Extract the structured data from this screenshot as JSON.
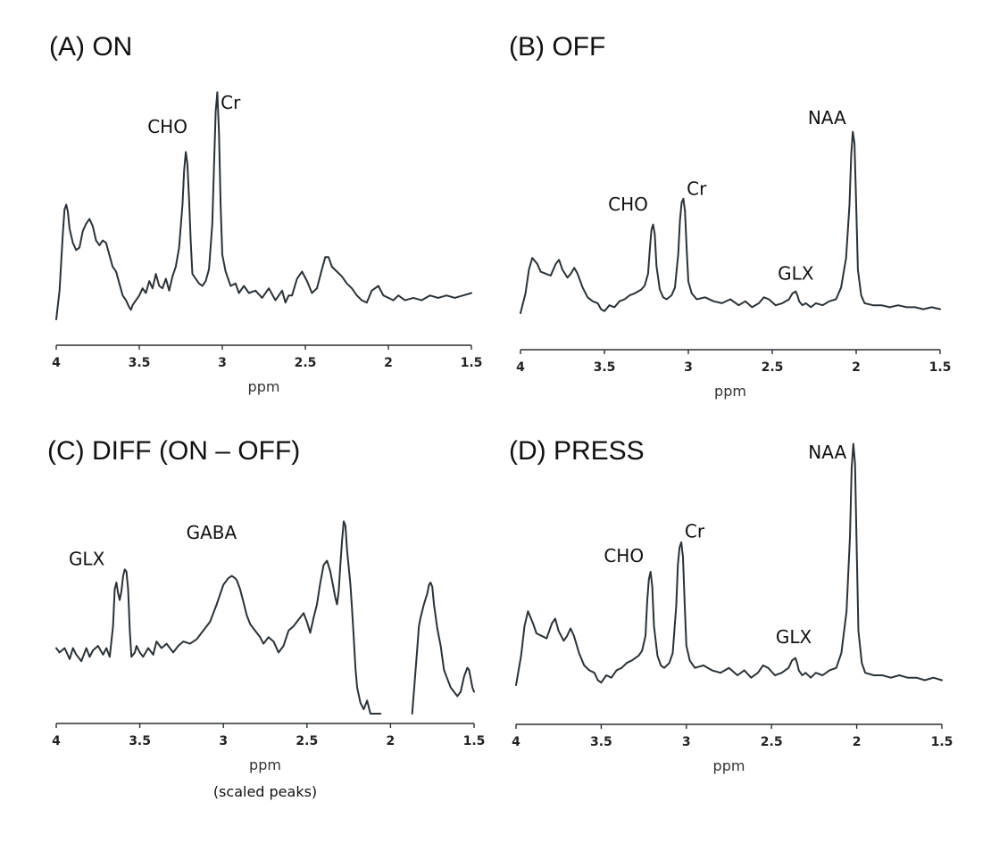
{
  "colors": {
    "spectrum": "#2b3237",
    "axis": "#2a2f33"
  },
  "chart_data": [
    {
      "type": "line",
      "title": "(A) ON",
      "xlabel": "ppm",
      "ylabel": "",
      "xlim": [
        4,
        1.5
      ],
      "ylim": [
        0,
        1
      ],
      "xticks": [
        4,
        3.5,
        3,
        2.5,
        2,
        1.5
      ],
      "tick_labels": [
        "4",
        "3.5",
        "3",
        "2.5",
        "2",
        "1.5"
      ],
      "note": "",
      "series": [
        {
          "name": "ON spectrum",
          "x": [
            4.0,
            3.98,
            3.96,
            3.95,
            3.94,
            3.93,
            3.92,
            3.9,
            3.88,
            3.86,
            3.84,
            3.82,
            3.8,
            3.78,
            3.76,
            3.74,
            3.72,
            3.7,
            3.68,
            3.66,
            3.64,
            3.62,
            3.6,
            3.58,
            3.56,
            3.55,
            3.54,
            3.52,
            3.5,
            3.48,
            3.46,
            3.44,
            3.42,
            3.4,
            3.38,
            3.36,
            3.34,
            3.32,
            3.3,
            3.28,
            3.26,
            3.24,
            3.23,
            3.22,
            3.21,
            3.2,
            3.19,
            3.18,
            3.16,
            3.14,
            3.12,
            3.1,
            3.08,
            3.06,
            3.05,
            3.04,
            3.03,
            3.02,
            3.01,
            3.0,
            2.98,
            2.95,
            2.92,
            2.9,
            2.87,
            2.84,
            2.8,
            2.76,
            2.72,
            2.68,
            2.64,
            2.62,
            2.6,
            2.58,
            2.55,
            2.52,
            2.49,
            2.46,
            2.43,
            2.4,
            2.38,
            2.36,
            2.34,
            2.31,
            2.28,
            2.25,
            2.22,
            2.19,
            2.16,
            2.13,
            2.1,
            2.06,
            2.03,
            2.0,
            1.97,
            1.94,
            1.9,
            1.85,
            1.8,
            1.75,
            1.7,
            1.65,
            1.6,
            1.55,
            1.5
          ],
          "y": [
            0.0,
            0.12,
            0.36,
            0.46,
            0.48,
            0.45,
            0.38,
            0.32,
            0.29,
            0.3,
            0.37,
            0.4,
            0.42,
            0.39,
            0.33,
            0.31,
            0.33,
            0.32,
            0.27,
            0.22,
            0.2,
            0.15,
            0.1,
            0.08,
            0.05,
            0.04,
            0.06,
            0.08,
            0.1,
            0.13,
            0.11,
            0.16,
            0.13,
            0.19,
            0.14,
            0.13,
            0.17,
            0.12,
            0.18,
            0.22,
            0.3,
            0.48,
            0.62,
            0.7,
            0.65,
            0.5,
            0.32,
            0.19,
            0.17,
            0.15,
            0.14,
            0.16,
            0.21,
            0.4,
            0.64,
            0.87,
            0.95,
            0.78,
            0.48,
            0.27,
            0.2,
            0.14,
            0.15,
            0.11,
            0.14,
            0.11,
            0.12,
            0.09,
            0.13,
            0.08,
            0.12,
            0.07,
            0.1,
            0.1,
            0.17,
            0.2,
            0.16,
            0.11,
            0.13,
            0.21,
            0.26,
            0.26,
            0.22,
            0.2,
            0.18,
            0.15,
            0.13,
            0.1,
            0.08,
            0.07,
            0.12,
            0.14,
            0.1,
            0.09,
            0.08,
            0.1,
            0.08,
            0.09,
            0.08,
            0.1,
            0.09,
            0.1,
            0.09,
            0.1,
            0.11
          ]
        }
      ],
      "peak_labels": [
        {
          "text": "CHO",
          "ppm": 3.21,
          "y": 0.78,
          "anchor": "end"
        },
        {
          "text": "Cr",
          "ppm": 3.01,
          "y": 0.88,
          "anchor": "start"
        }
      ]
    },
    {
      "type": "line",
      "title": "(B) OFF",
      "xlabel": "ppm",
      "ylabel": "",
      "xlim": [
        4,
        1.5
      ],
      "ylim": [
        0,
        1
      ],
      "xticks": [
        4,
        3.5,
        3,
        2.5,
        2,
        1.5
      ],
      "tick_labels": [
        "4",
        "3.5",
        "3",
        "2.5",
        "2",
        "1.5"
      ],
      "note": "",
      "series": [
        {
          "name": "OFF spectrum",
          "x": [
            4.0,
            3.97,
            3.95,
            3.93,
            3.9,
            3.88,
            3.85,
            3.82,
            3.79,
            3.77,
            3.75,
            3.72,
            3.7,
            3.68,
            3.66,
            3.63,
            3.6,
            3.57,
            3.54,
            3.52,
            3.5,
            3.47,
            3.44,
            3.41,
            3.38,
            3.35,
            3.32,
            3.3,
            3.28,
            3.26,
            3.24,
            3.23,
            3.22,
            3.21,
            3.2,
            3.19,
            3.17,
            3.15,
            3.13,
            3.1,
            3.08,
            3.06,
            3.05,
            3.04,
            3.03,
            3.02,
            3.01,
            3.0,
            2.98,
            2.95,
            2.9,
            2.85,
            2.8,
            2.75,
            2.7,
            2.66,
            2.62,
            2.58,
            2.55,
            2.52,
            2.48,
            2.44,
            2.4,
            2.38,
            2.36,
            2.35,
            2.34,
            2.32,
            2.3,
            2.27,
            2.24,
            2.2,
            2.16,
            2.12,
            2.09,
            2.06,
            2.04,
            2.03,
            2.02,
            2.01,
            2.0,
            1.99,
            1.97,
            1.95,
            1.9,
            1.85,
            1.8,
            1.75,
            1.7,
            1.65,
            1.6,
            1.55,
            1.5
          ],
          "y": [
            0.0,
            0.1,
            0.22,
            0.28,
            0.25,
            0.21,
            0.2,
            0.19,
            0.25,
            0.27,
            0.22,
            0.18,
            0.2,
            0.23,
            0.2,
            0.13,
            0.08,
            0.06,
            0.05,
            0.02,
            0.01,
            0.04,
            0.03,
            0.06,
            0.07,
            0.09,
            0.1,
            0.11,
            0.12,
            0.14,
            0.2,
            0.32,
            0.42,
            0.45,
            0.4,
            0.24,
            0.12,
            0.08,
            0.07,
            0.09,
            0.13,
            0.3,
            0.47,
            0.56,
            0.58,
            0.52,
            0.33,
            0.16,
            0.1,
            0.07,
            0.08,
            0.06,
            0.05,
            0.07,
            0.04,
            0.06,
            0.03,
            0.05,
            0.08,
            0.07,
            0.04,
            0.05,
            0.07,
            0.1,
            0.11,
            0.09,
            0.06,
            0.04,
            0.05,
            0.03,
            0.05,
            0.04,
            0.06,
            0.07,
            0.13,
            0.28,
            0.55,
            0.8,
            0.92,
            0.86,
            0.55,
            0.22,
            0.09,
            0.05,
            0.04,
            0.04,
            0.03,
            0.04,
            0.03,
            0.03,
            0.02,
            0.03,
            0.02
          ]
        }
      ],
      "peak_labels": [
        {
          "text": "CHO",
          "ppm": 3.24,
          "y": 0.52,
          "anchor": "end"
        },
        {
          "text": "Cr",
          "ppm": 3.01,
          "y": 0.6,
          "anchor": "start"
        },
        {
          "text": "GLX",
          "ppm": 2.36,
          "y": 0.17,
          "anchor": "middle"
        },
        {
          "text": "NAA",
          "ppm": 2.06,
          "y": 0.96,
          "anchor": "end"
        }
      ]
    },
    {
      "type": "line",
      "title": "(C) DIFF (ON – OFF)",
      "xlabel": "ppm",
      "ylabel": "",
      "xlim": [
        4,
        1.5
      ],
      "ylim": [
        0,
        1
      ],
      "xticks": [
        4,
        3.5,
        3,
        2.5,
        2,
        1.5
      ],
      "tick_labels": [
        "4",
        "3.5",
        "3",
        "2.5",
        "2",
        "1.5"
      ],
      "note": "(scaled peaks)",
      "series": [
        {
          "name": "difference spectrum",
          "x": [
            4.0,
            3.98,
            3.95,
            3.92,
            3.9,
            3.88,
            3.85,
            3.82,
            3.8,
            3.78,
            3.75,
            3.72,
            3.7,
            3.68,
            3.66,
            3.65,
            3.64,
            3.63,
            3.62,
            3.61,
            3.6,
            3.59,
            3.58,
            3.57,
            3.56,
            3.55,
            3.54,
            3.53,
            3.52,
            3.5,
            3.48,
            3.45,
            3.42,
            3.4,
            3.37,
            3.34,
            3.3,
            3.27,
            3.24,
            3.2,
            3.16,
            3.12,
            3.08,
            3.04,
            3.0,
            2.97,
            2.95,
            2.93,
            2.92,
            2.9,
            2.88,
            2.86,
            2.84,
            2.82,
            2.8,
            2.78,
            2.76,
            2.73,
            2.7,
            2.67,
            2.64,
            2.61,
            2.58,
            2.55,
            2.52,
            2.5,
            2.48,
            2.46,
            2.44,
            2.42,
            2.4,
            2.38,
            2.36,
            2.34,
            2.33,
            2.32,
            2.31,
            2.3,
            2.29,
            2.28,
            2.27,
            2.26,
            2.25,
            2.24,
            2.23,
            2.22,
            2.21,
            2.2,
            2.18,
            2.16,
            2.14,
            2.12,
            2.1,
            2.08,
            2.06
          ],
          "y": [
            0.3,
            0.28,
            0.3,
            0.25,
            0.3,
            0.27,
            0.24,
            0.3,
            0.26,
            0.29,
            0.31,
            0.27,
            0.3,
            0.26,
            0.4,
            0.57,
            0.6,
            0.55,
            0.52,
            0.56,
            0.63,
            0.66,
            0.65,
            0.57,
            0.38,
            0.26,
            0.27,
            0.28,
            0.31,
            0.28,
            0.26,
            0.3,
            0.27,
            0.33,
            0.3,
            0.32,
            0.28,
            0.31,
            0.33,
            0.32,
            0.34,
            0.38,
            0.42,
            0.5,
            0.59,
            0.62,
            0.63,
            0.62,
            0.61,
            0.57,
            0.51,
            0.45,
            0.41,
            0.39,
            0.37,
            0.35,
            0.32,
            0.35,
            0.33,
            0.28,
            0.31,
            0.38,
            0.4,
            0.43,
            0.46,
            0.42,
            0.37,
            0.44,
            0.5,
            0.6,
            0.68,
            0.7,
            0.65,
            0.57,
            0.53,
            0.5,
            0.56,
            0.68,
            0.79,
            0.88,
            0.86,
            0.75,
            0.67,
            0.59,
            0.48,
            0.35,
            0.21,
            0.12,
            0.05,
            0.02,
            0.06,
            0.0,
            0.0,
            0.0,
            0.0
          ]
        },
        {
          "name": "difference spectrum (second segment)",
          "x": [
            1.87,
            1.86,
            1.85,
            1.84,
            1.83,
            1.82,
            1.8,
            1.78,
            1.77,
            1.76,
            1.75,
            1.74,
            1.72,
            1.7,
            1.68,
            1.66,
            1.64,
            1.62,
            1.6,
            1.58,
            1.56,
            1.54,
            1.53,
            1.52,
            1.51,
            1.5
          ],
          "y": [
            0.0,
            0.1,
            0.2,
            0.3,
            0.4,
            0.44,
            0.5,
            0.55,
            0.59,
            0.6,
            0.58,
            0.5,
            0.39,
            0.31,
            0.2,
            0.16,
            0.12,
            0.1,
            0.08,
            0.1,
            0.17,
            0.21,
            0.2,
            0.16,
            0.12,
            0.1
          ]
        }
      ],
      "peak_labels": [
        {
          "text": "GLX",
          "ppm": 3.71,
          "y": 0.68,
          "anchor": "end"
        },
        {
          "text": "GABA",
          "ppm": 2.92,
          "y": 0.8,
          "anchor": "end"
        }
      ]
    },
    {
      "type": "line",
      "title": "(D) PRESS",
      "xlabel": "ppm",
      "ylabel": "",
      "xlim": [
        4,
        1.5
      ],
      "ylim": [
        0,
        1
      ],
      "xticks": [
        4,
        3.5,
        3,
        2.5,
        2,
        1.5
      ],
      "tick_labels": [
        "4",
        "3.5",
        "3",
        "2.5",
        "2",
        "1.5"
      ],
      "note": "",
      "series": [
        {
          "name": "PRESS spectrum",
          "x": [
            4.0,
            3.97,
            3.95,
            3.93,
            3.9,
            3.88,
            3.85,
            3.82,
            3.79,
            3.77,
            3.75,
            3.72,
            3.7,
            3.68,
            3.66,
            3.63,
            3.6,
            3.57,
            3.54,
            3.52,
            3.5,
            3.47,
            3.44,
            3.41,
            3.38,
            3.35,
            3.32,
            3.3,
            3.28,
            3.26,
            3.24,
            3.23,
            3.22,
            3.21,
            3.2,
            3.19,
            3.17,
            3.15,
            3.13,
            3.1,
            3.08,
            3.06,
            3.05,
            3.04,
            3.03,
            3.02,
            3.01,
            3.0,
            2.98,
            2.95,
            2.9,
            2.85,
            2.8,
            2.75,
            2.7,
            2.66,
            2.62,
            2.58,
            2.55,
            2.52,
            2.48,
            2.44,
            2.4,
            2.38,
            2.36,
            2.35,
            2.34,
            2.32,
            2.3,
            2.27,
            2.24,
            2.2,
            2.16,
            2.12,
            2.09,
            2.06,
            2.04,
            2.03,
            2.02,
            2.01,
            2.0,
            1.99,
            1.97,
            1.95,
            1.9,
            1.85,
            1.8,
            1.75,
            1.7,
            1.65,
            1.6,
            1.55,
            1.5
          ],
          "y": [
            0.0,
            0.12,
            0.24,
            0.3,
            0.25,
            0.21,
            0.2,
            0.19,
            0.25,
            0.27,
            0.22,
            0.18,
            0.2,
            0.23,
            0.2,
            0.13,
            0.08,
            0.06,
            0.05,
            0.02,
            0.01,
            0.04,
            0.03,
            0.06,
            0.07,
            0.09,
            0.1,
            0.11,
            0.12,
            0.14,
            0.2,
            0.34,
            0.43,
            0.46,
            0.4,
            0.24,
            0.12,
            0.08,
            0.07,
            0.09,
            0.13,
            0.32,
            0.49,
            0.56,
            0.58,
            0.52,
            0.33,
            0.16,
            0.1,
            0.07,
            0.08,
            0.06,
            0.05,
            0.07,
            0.04,
            0.06,
            0.03,
            0.05,
            0.08,
            0.07,
            0.04,
            0.05,
            0.07,
            0.1,
            0.11,
            0.09,
            0.06,
            0.04,
            0.05,
            0.03,
            0.05,
            0.04,
            0.06,
            0.07,
            0.13,
            0.3,
            0.6,
            0.88,
            0.98,
            0.9,
            0.55,
            0.22,
            0.09,
            0.05,
            0.04,
            0.04,
            0.03,
            0.04,
            0.03,
            0.03,
            0.02,
            0.03,
            0.02
          ]
        }
      ],
      "peak_labels": [
        {
          "text": "CHO",
          "ppm": 3.25,
          "y": 0.5,
          "anchor": "end"
        },
        {
          "text": "Cr",
          "ppm": 3.01,
          "y": 0.6,
          "anchor": "start"
        },
        {
          "text": "GLX",
          "ppm": 2.37,
          "y": 0.17,
          "anchor": "middle"
        },
        {
          "text": "NAA",
          "ppm": 2.06,
          "y": 0.92,
          "anchor": "end"
        }
      ]
    }
  ]
}
